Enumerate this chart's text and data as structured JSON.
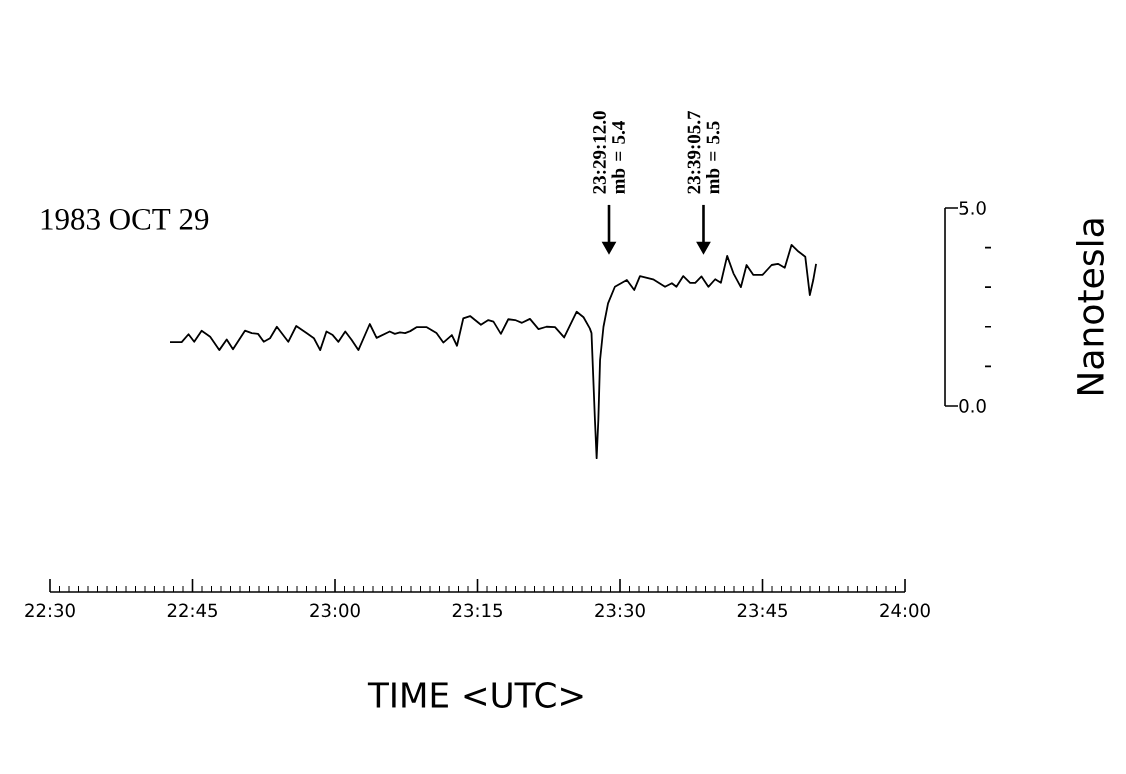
{
  "chart_data": {
    "type": "line",
    "title": "1983 OCT 29",
    "xlabel": "TIME <UTC>",
    "ylabel": "Nanotesla",
    "annotations": [
      "23:29:12.0 mb = 5.4",
      "23:39:05.7 mb = 5.5"
    ],
    "xlim": [
      22.5,
      24
    ],
    "ylim": [
      -4.7,
      5.0
    ],
    "xticks": [
      {
        "value": 22.5,
        "label": "22:30"
      },
      {
        "value": 22.75,
        "label": "22:45"
      },
      {
        "value": 23,
        "label": "23:00"
      },
      {
        "value": 23.25,
        "label": "23:15"
      },
      {
        "value": 23.5,
        "label": "23:30"
      },
      {
        "value": 23.75,
        "label": "23:45"
      },
      {
        "value": 24,
        "label": "24:00"
      }
    ],
    "yticks": [
      {
        "value": 0,
        "label": "0.0"
      },
      {
        "value": 5,
        "label": "5.0"
      }
    ],
    "x": [
      22.7105,
      22.731,
      22.743,
      22.753,
      22.766,
      22.781,
      22.797,
      22.81,
      22.821,
      22.842,
      22.854,
      22.865,
      22.875,
      22.886,
      22.898,
      22.918,
      22.932,
      22.95,
      22.963,
      22.974,
      22.985,
      22.996,
      23.006,
      23.018,
      23.029,
      23.041,
      23.061,
      23.073,
      23.096,
      23.105,
      23.114,
      23.123,
      23.132,
      23.143,
      23.161,
      23.178,
      23.19,
      23.205,
      23.214,
      23.225,
      23.237,
      23.256,
      23.269,
      23.278,
      23.291,
      23.304,
      23.316,
      23.328,
      23.342,
      23.357,
      23.371,
      23.386,
      23.402,
      23.424,
      23.436,
      23.447,
      23.45,
      23.456,
      23.459,
      23.462,
      23.465,
      23.471,
      23.479,
      23.491,
      23.512,
      23.525,
      23.535,
      23.558,
      23.579,
      23.591,
      23.599,
      23.611,
      23.623,
      23.632,
      23.643,
      23.655,
      23.667,
      23.677,
      23.688,
      23.699,
      23.712,
      23.722,
      23.734,
      23.75,
      23.766,
      23.777,
      23.789,
      23.801,
      23.813,
      23.825,
      23.833,
      23.839,
      23.844
    ],
    "series": [
      {
        "color": "#000000",
        "values": [
          1.61,
          1.61,
          1.81,
          1.62,
          1.9,
          1.75,
          1.41,
          1.68,
          1.43,
          1.9,
          1.84,
          1.82,
          1.62,
          1.71,
          2.0,
          1.62,
          2.02,
          1.84,
          1.71,
          1.41,
          1.88,
          1.79,
          1.62,
          1.88,
          1.67,
          1.41,
          2.07,
          1.72,
          1.88,
          1.82,
          1.86,
          1.84,
          1.89,
          1.99,
          1.99,
          1.84,
          1.6,
          1.79,
          1.52,
          2.21,
          2.27,
          2.05,
          2.17,
          2.13,
          1.82,
          2.19,
          2.17,
          2.1,
          2.2,
          1.94,
          2.0,
          1.99,
          1.73,
          2.38,
          2.24,
          1.96,
          1.84,
          -0.35,
          -1.32,
          -0.35,
          1.16,
          2.0,
          2.59,
          3.01,
          3.18,
          2.93,
          3.28,
          3.2,
          3.01,
          3.1,
          3.01,
          3.28,
          3.11,
          3.11,
          3.27,
          3.01,
          3.2,
          3.11,
          3.79,
          3.35,
          3.0,
          3.56,
          3.31,
          3.31,
          3.56,
          3.59,
          3.49,
          4.07,
          3.9,
          3.77,
          2.8,
          3.18,
          3.59
        ]
      }
    ]
  }
}
